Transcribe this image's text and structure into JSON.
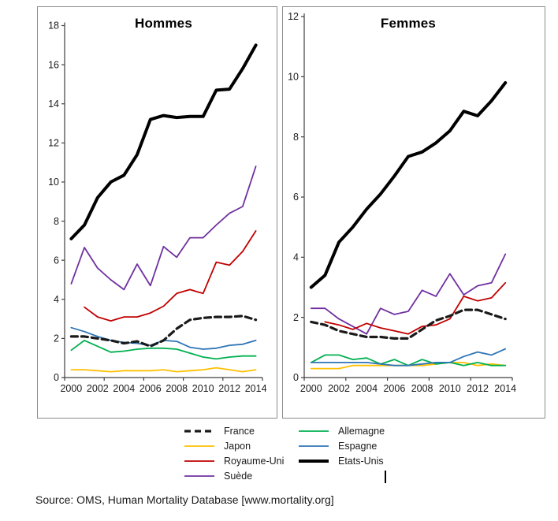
{
  "page": {
    "background": "#ffffff"
  },
  "source_note": "Source: OMS, Human Mortality Database [www.mortality.org]",
  "legend": {
    "columns": [
      [
        {
          "label": "France"
        },
        {
          "label": "Japon"
        },
        {
          "label": "Royaume-Uni"
        },
        {
          "label": "Suède"
        }
      ],
      [
        {
          "label": "Allemagne"
        },
        {
          "label": "Espagne"
        },
        {
          "label": "Etats-Unis"
        }
      ]
    ],
    "cursor_artifact": "|"
  },
  "palette": {
    "france": "#1a1a1a",
    "japon": "#FFC000",
    "royaume_uni": "#C00000",
    "suede": "#7030A0",
    "allemagne": "#00B050",
    "espagne": "#2E75B6",
    "etats_unis": "#000000"
  },
  "chart_data": [
    {
      "type": "line",
      "title": "Hommes",
      "x": [
        2000,
        2001,
        2002,
        2003,
        2004,
        2005,
        2006,
        2007,
        2008,
        2009,
        2010,
        2011,
        2012,
        2013,
        2014
      ],
      "x_tick_labels": [
        "2000",
        "2002",
        "2004",
        "2006",
        "2008",
        "2010",
        "2012",
        "2014"
      ],
      "ylim": [
        0,
        18
      ],
      "ytick_step": 2,
      "grid": false,
      "legend_position": "bottom",
      "series": [
        {
          "name": "France",
          "color": "#1a1a1a",
          "dash": true,
          "width": 3.2,
          "z": 6,
          "values": [
            2.1,
            2.1,
            2.0,
            1.9,
            1.75,
            1.85,
            1.6,
            1.9,
            2.5,
            2.95,
            3.05,
            3.1,
            3.1,
            3.15,
            2.95
          ]
        },
        {
          "name": "Japon",
          "color": "#FFC000",
          "dash": false,
          "width": 1.8,
          "z": 1,
          "values": [
            0.4,
            0.4,
            0.35,
            0.3,
            0.35,
            0.35,
            0.35,
            0.4,
            0.3,
            0.35,
            0.4,
            0.5,
            0.4,
            0.3,
            0.4
          ]
        },
        {
          "name": "Royaume-Uni",
          "color": "#C00000",
          "dash": false,
          "width": 1.8,
          "z": 5,
          "values": [
            null,
            3.6,
            3.1,
            2.9,
            3.1,
            3.1,
            3.3,
            3.65,
            4.3,
            4.5,
            4.3,
            5.9,
            5.75,
            6.45,
            7.5
          ]
        },
        {
          "name": "Suède",
          "color": "#7030A0",
          "dash": false,
          "width": 1.8,
          "z": 4,
          "values": [
            4.8,
            6.65,
            5.6,
            5.0,
            4.5,
            5.8,
            4.7,
            6.7,
            6.15,
            7.15,
            7.15,
            7.8,
            8.4,
            8.75,
            10.8
          ]
        },
        {
          "name": "Allemagne",
          "color": "#00B050",
          "dash": false,
          "width": 1.8,
          "z": 2,
          "values": [
            1.4,
            1.9,
            1.6,
            1.3,
            1.35,
            1.45,
            1.5,
            1.5,
            1.45,
            1.25,
            1.05,
            0.95,
            1.05,
            1.1,
            1.1
          ]
        },
        {
          "name": "Espagne",
          "color": "#2E75B6",
          "dash": false,
          "width": 1.8,
          "z": 3,
          "values": [
            2.55,
            2.35,
            2.1,
            1.9,
            1.8,
            1.75,
            1.65,
            1.9,
            1.85,
            1.55,
            1.45,
            1.5,
            1.65,
            1.7,
            1.9
          ]
        },
        {
          "name": "Etats-Unis",
          "color": "#000000",
          "dash": false,
          "width": 4.0,
          "z": 7,
          "values": [
            7.1,
            7.8,
            9.2,
            10.0,
            10.35,
            11.4,
            13.2,
            13.4,
            13.3,
            13.35,
            13.35,
            14.7,
            14.75,
            15.8,
            17.0
          ]
        }
      ]
    },
    {
      "type": "line",
      "title": "Femmes",
      "x": [
        2000,
        2001,
        2002,
        2003,
        2004,
        2005,
        2006,
        2007,
        2008,
        2009,
        2010,
        2011,
        2012,
        2013,
        2014
      ],
      "x_tick_labels": [
        "2000",
        "2002",
        "2004",
        "2006",
        "2008",
        "2010",
        "2012",
        "2014"
      ],
      "ylim": [
        0,
        12
      ],
      "ytick_step": 2,
      "grid": false,
      "legend_position": "bottom",
      "series": [
        {
          "name": "France",
          "color": "#1a1a1a",
          "dash": true,
          "width": 3.2,
          "z": 6,
          "values": [
            1.85,
            1.75,
            1.55,
            1.45,
            1.35,
            1.35,
            1.3,
            1.3,
            1.6,
            1.9,
            2.05,
            2.25,
            2.25,
            2.1,
            1.95
          ]
        },
        {
          "name": "Japon",
          "color": "#FFC000",
          "dash": false,
          "width": 1.8,
          "z": 1,
          "values": [
            0.3,
            0.3,
            0.3,
            0.4,
            0.4,
            0.4,
            0.4,
            0.4,
            0.4,
            0.45,
            0.5,
            0.5,
            0.4,
            0.45,
            0.4
          ]
        },
        {
          "name": "Royaume-Uni",
          "color": "#C00000",
          "dash": false,
          "width": 1.8,
          "z": 5,
          "values": [
            null,
            1.85,
            1.75,
            1.6,
            1.8,
            1.65,
            1.55,
            1.45,
            1.7,
            1.75,
            1.95,
            2.7,
            2.55,
            2.65,
            3.15
          ]
        },
        {
          "name": "Suède",
          "color": "#7030A0",
          "dash": false,
          "width": 1.8,
          "z": 4,
          "values": [
            2.3,
            2.3,
            1.95,
            1.7,
            1.45,
            2.3,
            2.1,
            2.2,
            2.9,
            2.7,
            3.45,
            2.75,
            3.05,
            3.15,
            4.1
          ]
        },
        {
          "name": "Allemagne",
          "color": "#00B050",
          "dash": false,
          "width": 1.8,
          "z": 2,
          "values": [
            0.5,
            0.75,
            0.75,
            0.6,
            0.65,
            0.45,
            0.6,
            0.4,
            0.6,
            0.45,
            0.5,
            0.4,
            0.5,
            0.4,
            0.4
          ]
        },
        {
          "name": "Espagne",
          "color": "#2E75B6",
          "dash": false,
          "width": 1.8,
          "z": 3,
          "values": [
            0.5,
            0.5,
            0.5,
            0.5,
            0.5,
            0.45,
            0.4,
            0.4,
            0.45,
            0.5,
            0.5,
            0.7,
            0.85,
            0.75,
            0.95
          ]
        },
        {
          "name": "Etats-Unis",
          "color": "#000000",
          "dash": false,
          "width": 4.0,
          "z": 7,
          "values": [
            3.0,
            3.4,
            4.5,
            5.0,
            5.6,
            6.1,
            6.7,
            7.35,
            7.5,
            7.8,
            8.2,
            8.85,
            8.7,
            9.2,
            9.8
          ]
        }
      ]
    }
  ]
}
